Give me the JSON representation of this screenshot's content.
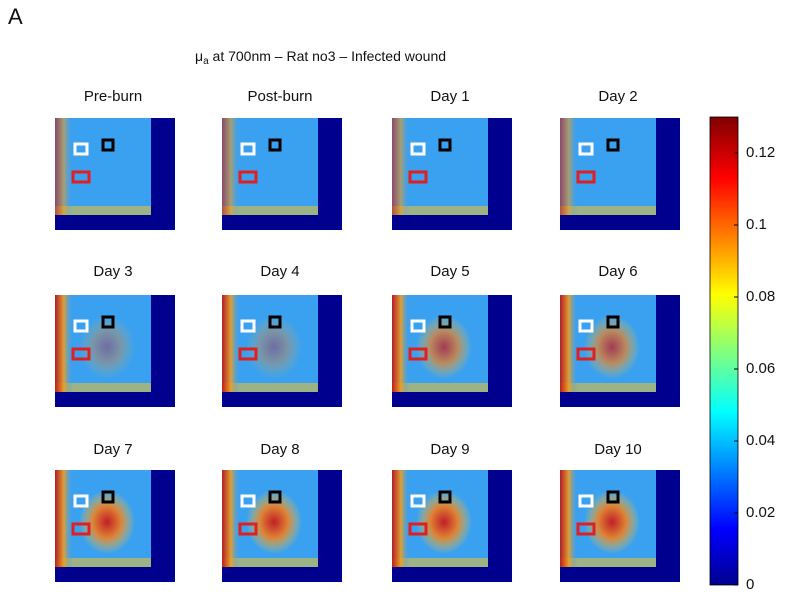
{
  "panel_label": "A",
  "title": {
    "symbol": "μ",
    "subscript": "a",
    "text": " at 700nm – Rat no3 – Infected wound"
  },
  "panels": [
    {
      "title": "Pre-burn"
    },
    {
      "title": "Post-burn"
    },
    {
      "title": "Day 1"
    },
    {
      "title": "Day 2"
    },
    {
      "title": "Day 3"
    },
    {
      "title": "Day 4"
    },
    {
      "title": "Day 5"
    },
    {
      "title": "Day 6"
    },
    {
      "title": "Day 7"
    },
    {
      "title": "Day 8"
    },
    {
      "title": "Day 9"
    },
    {
      "title": "Day 10"
    }
  ],
  "colorbar": {
    "lim": [
      0,
      0.13
    ],
    "ticks": [
      0,
      0.02,
      0.04,
      0.06,
      0.08,
      0.1,
      0.12
    ]
  }
}
